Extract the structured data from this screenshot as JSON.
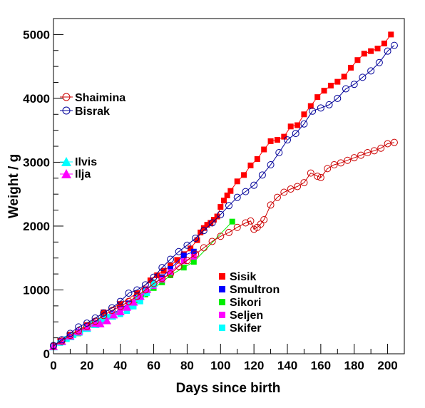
{
  "chart_data": {
    "type": "scatter",
    "title": "",
    "xlabel": "Days since birth",
    "ylabel": "Weight / g",
    "xlim": [
      0,
      210
    ],
    "ylim": [
      0,
      5250
    ],
    "x_ticks": [
      0,
      20,
      40,
      60,
      80,
      100,
      120,
      140,
      160,
      180,
      200
    ],
    "y_ticks": [
      0,
      1000,
      2000,
      3000,
      4000,
      5000
    ],
    "x_tick_labels": [
      "0",
      "20",
      "40",
      "60",
      "80",
      "100",
      "120",
      "140",
      "160",
      "180",
      "200"
    ],
    "y_tick_labels": [
      "0",
      "1000",
      "2000",
      "3000",
      "4000",
      "5000"
    ],
    "grid": false,
    "legends": [
      {
        "placement": "left",
        "entries": [
          "Shaimina",
          "Bisrak"
        ]
      },
      {
        "placement": "left",
        "entries": [
          "Ilvis",
          "Ilja"
        ]
      },
      {
        "placement": "bottom-center",
        "entries": [
          "Sisik",
          "Smultron",
          "Sikori",
          "Seljen",
          "Skifer"
        ]
      }
    ],
    "series": [
      {
        "name": "Sisik",
        "marker": "square",
        "color": "#ff0000",
        "line": true,
        "x": [
          0,
          4,
          10,
          20,
          30,
          40,
          50,
          58,
          62,
          66,
          70,
          74,
          78,
          82,
          86,
          88,
          90,
          92,
          94,
          96,
          98,
          100,
          102,
          104,
          106,
          110,
          114,
          118,
          122,
          126,
          130,
          134,
          138,
          142,
          146,
          150,
          154,
          158,
          162,
          166,
          170,
          174,
          178,
          182,
          186,
          190,
          194,
          198,
          202
        ],
        "y": [
          120,
          200,
          300,
          450,
          650,
          780,
          950,
          1150,
          1230,
          1300,
          1380,
          1470,
          1560,
          1650,
          1780,
          1900,
          1970,
          2020,
          2050,
          2100,
          2150,
          2300,
          2400,
          2480,
          2550,
          2700,
          2800,
          2950,
          3050,
          3200,
          3330,
          3350,
          3400,
          3560,
          3580,
          3750,
          3880,
          4020,
          4120,
          4200,
          4260,
          4340,
          4480,
          4600,
          4700,
          4740,
          4780,
          4860,
          5000
        ]
      },
      {
        "name": "Smultron",
        "marker": "square",
        "color": "#0000ff",
        "line": true,
        "x": [
          0,
          5,
          10,
          15,
          20,
          25,
          30,
          35,
          40,
          45,
          50,
          55,
          60,
          65,
          70,
          78,
          84
        ],
        "y": [
          120,
          190,
          270,
          330,
          400,
          470,
          550,
          620,
          700,
          790,
          880,
          990,
          1090,
          1200,
          1330,
          1540,
          1600
        ]
      },
      {
        "name": "Sikori",
        "marker": "square",
        "color": "#00ee00",
        "line": true,
        "x": [
          0,
          5,
          10,
          15,
          20,
          25,
          30,
          35,
          40,
          45,
          50,
          55,
          60,
          65,
          70,
          78,
          84,
          107
        ],
        "y": [
          110,
          180,
          260,
          320,
          390,
          460,
          530,
          600,
          680,
          760,
          840,
          930,
          1030,
          1120,
          1230,
          1350,
          1440,
          2070
        ]
      },
      {
        "name": "Seljen",
        "marker": "square",
        "color": "#ff00ff",
        "line": true,
        "x": [
          0,
          5,
          10,
          15,
          20,
          25,
          30,
          35,
          40,
          45,
          50,
          55,
          60,
          65,
          70,
          78,
          84
        ],
        "y": [
          115,
          185,
          265,
          325,
          395,
          465,
          540,
          610,
          690,
          770,
          860,
          960,
          1060,
          1160,
          1280,
          1450,
          1520
        ]
      },
      {
        "name": "Skifer",
        "marker": "square",
        "color": "#00ffff",
        "line": true,
        "x": [
          0,
          4,
          8,
          12,
          16,
          20,
          24,
          28,
          32,
          36,
          40,
          44,
          48,
          52,
          56,
          60
        ],
        "y": [
          100,
          170,
          230,
          290,
          350,
          410,
          470,
          520,
          580,
          600,
          620,
          670,
          740,
          820,
          950,
          1080
        ]
      },
      {
        "name": "Ilvis",
        "marker": "triangle",
        "color": "#00ffff",
        "line": true,
        "x": [
          0,
          5,
          10,
          15,
          20,
          25,
          30,
          35,
          40,
          45,
          50,
          55,
          60
        ],
        "y": [
          110,
          190,
          270,
          340,
          400,
          460,
          520,
          590,
          660,
          750,
          870,
          1000,
          1110
        ]
      },
      {
        "name": "Ilja",
        "marker": "triangle",
        "color": "#ff00ff",
        "line": true,
        "x": [
          0,
          5,
          10,
          15,
          20,
          25,
          28,
          32,
          36,
          40,
          44,
          48,
          52,
          56
        ],
        "y": [
          115,
          195,
          280,
          350,
          420,
          480,
          470,
          520,
          610,
          660,
          730,
          810,
          900,
          1010
        ]
      },
      {
        "name": "Shaimina",
        "marker": "open-circle",
        "color": "#cc0000",
        "line": true,
        "x": [
          0,
          5,
          10,
          15,
          20,
          25,
          30,
          35,
          40,
          45,
          50,
          55,
          60,
          65,
          70,
          75,
          80,
          85,
          90,
          95,
          100,
          105,
          110,
          115,
          118,
          120,
          122,
          124,
          126,
          130,
          134,
          138,
          142,
          146,
          150,
          154,
          158,
          160,
          164,
          168,
          172,
          176,
          180,
          184,
          188,
          192,
          196,
          200,
          204
        ],
        "y": [
          120,
          200,
          290,
          360,
          430,
          510,
          600,
          680,
          740,
          820,
          900,
          1000,
          1100,
          1180,
          1250,
          1370,
          1460,
          1560,
          1660,
          1760,
          1840,
          1900,
          1980,
          2050,
          2080,
          1950,
          1980,
          2030,
          2100,
          2330,
          2450,
          2530,
          2580,
          2620,
          2680,
          2830,
          2780,
          2760,
          2900,
          2960,
          2990,
          3030,
          3070,
          3110,
          3150,
          3180,
          3220,
          3290,
          3310
        ]
      },
      {
        "name": "Bisrak",
        "marker": "open-circle",
        "color": "#000099",
        "line": true,
        "x": [
          0,
          5,
          10,
          15,
          20,
          25,
          30,
          35,
          40,
          45,
          50,
          55,
          60,
          65,
          70,
          75,
          80,
          85,
          90,
          95,
          100,
          105,
          110,
          115,
          120,
          125,
          130,
          135,
          140,
          145,
          150,
          155,
          160,
          165,
          170,
          175,
          180,
          185,
          190,
          195,
          200,
          204
        ],
        "y": [
          130,
          220,
          320,
          420,
          480,
          560,
          640,
          720,
          820,
          950,
          1000,
          1080,
          1200,
          1350,
          1480,
          1600,
          1700,
          1810,
          1930,
          2050,
          2180,
          2320,
          2450,
          2540,
          2640,
          2800,
          2960,
          3150,
          3350,
          3450,
          3600,
          3800,
          3850,
          3900,
          4000,
          4150,
          4220,
          4330,
          4430,
          4560,
          4740,
          4830
        ]
      }
    ]
  }
}
